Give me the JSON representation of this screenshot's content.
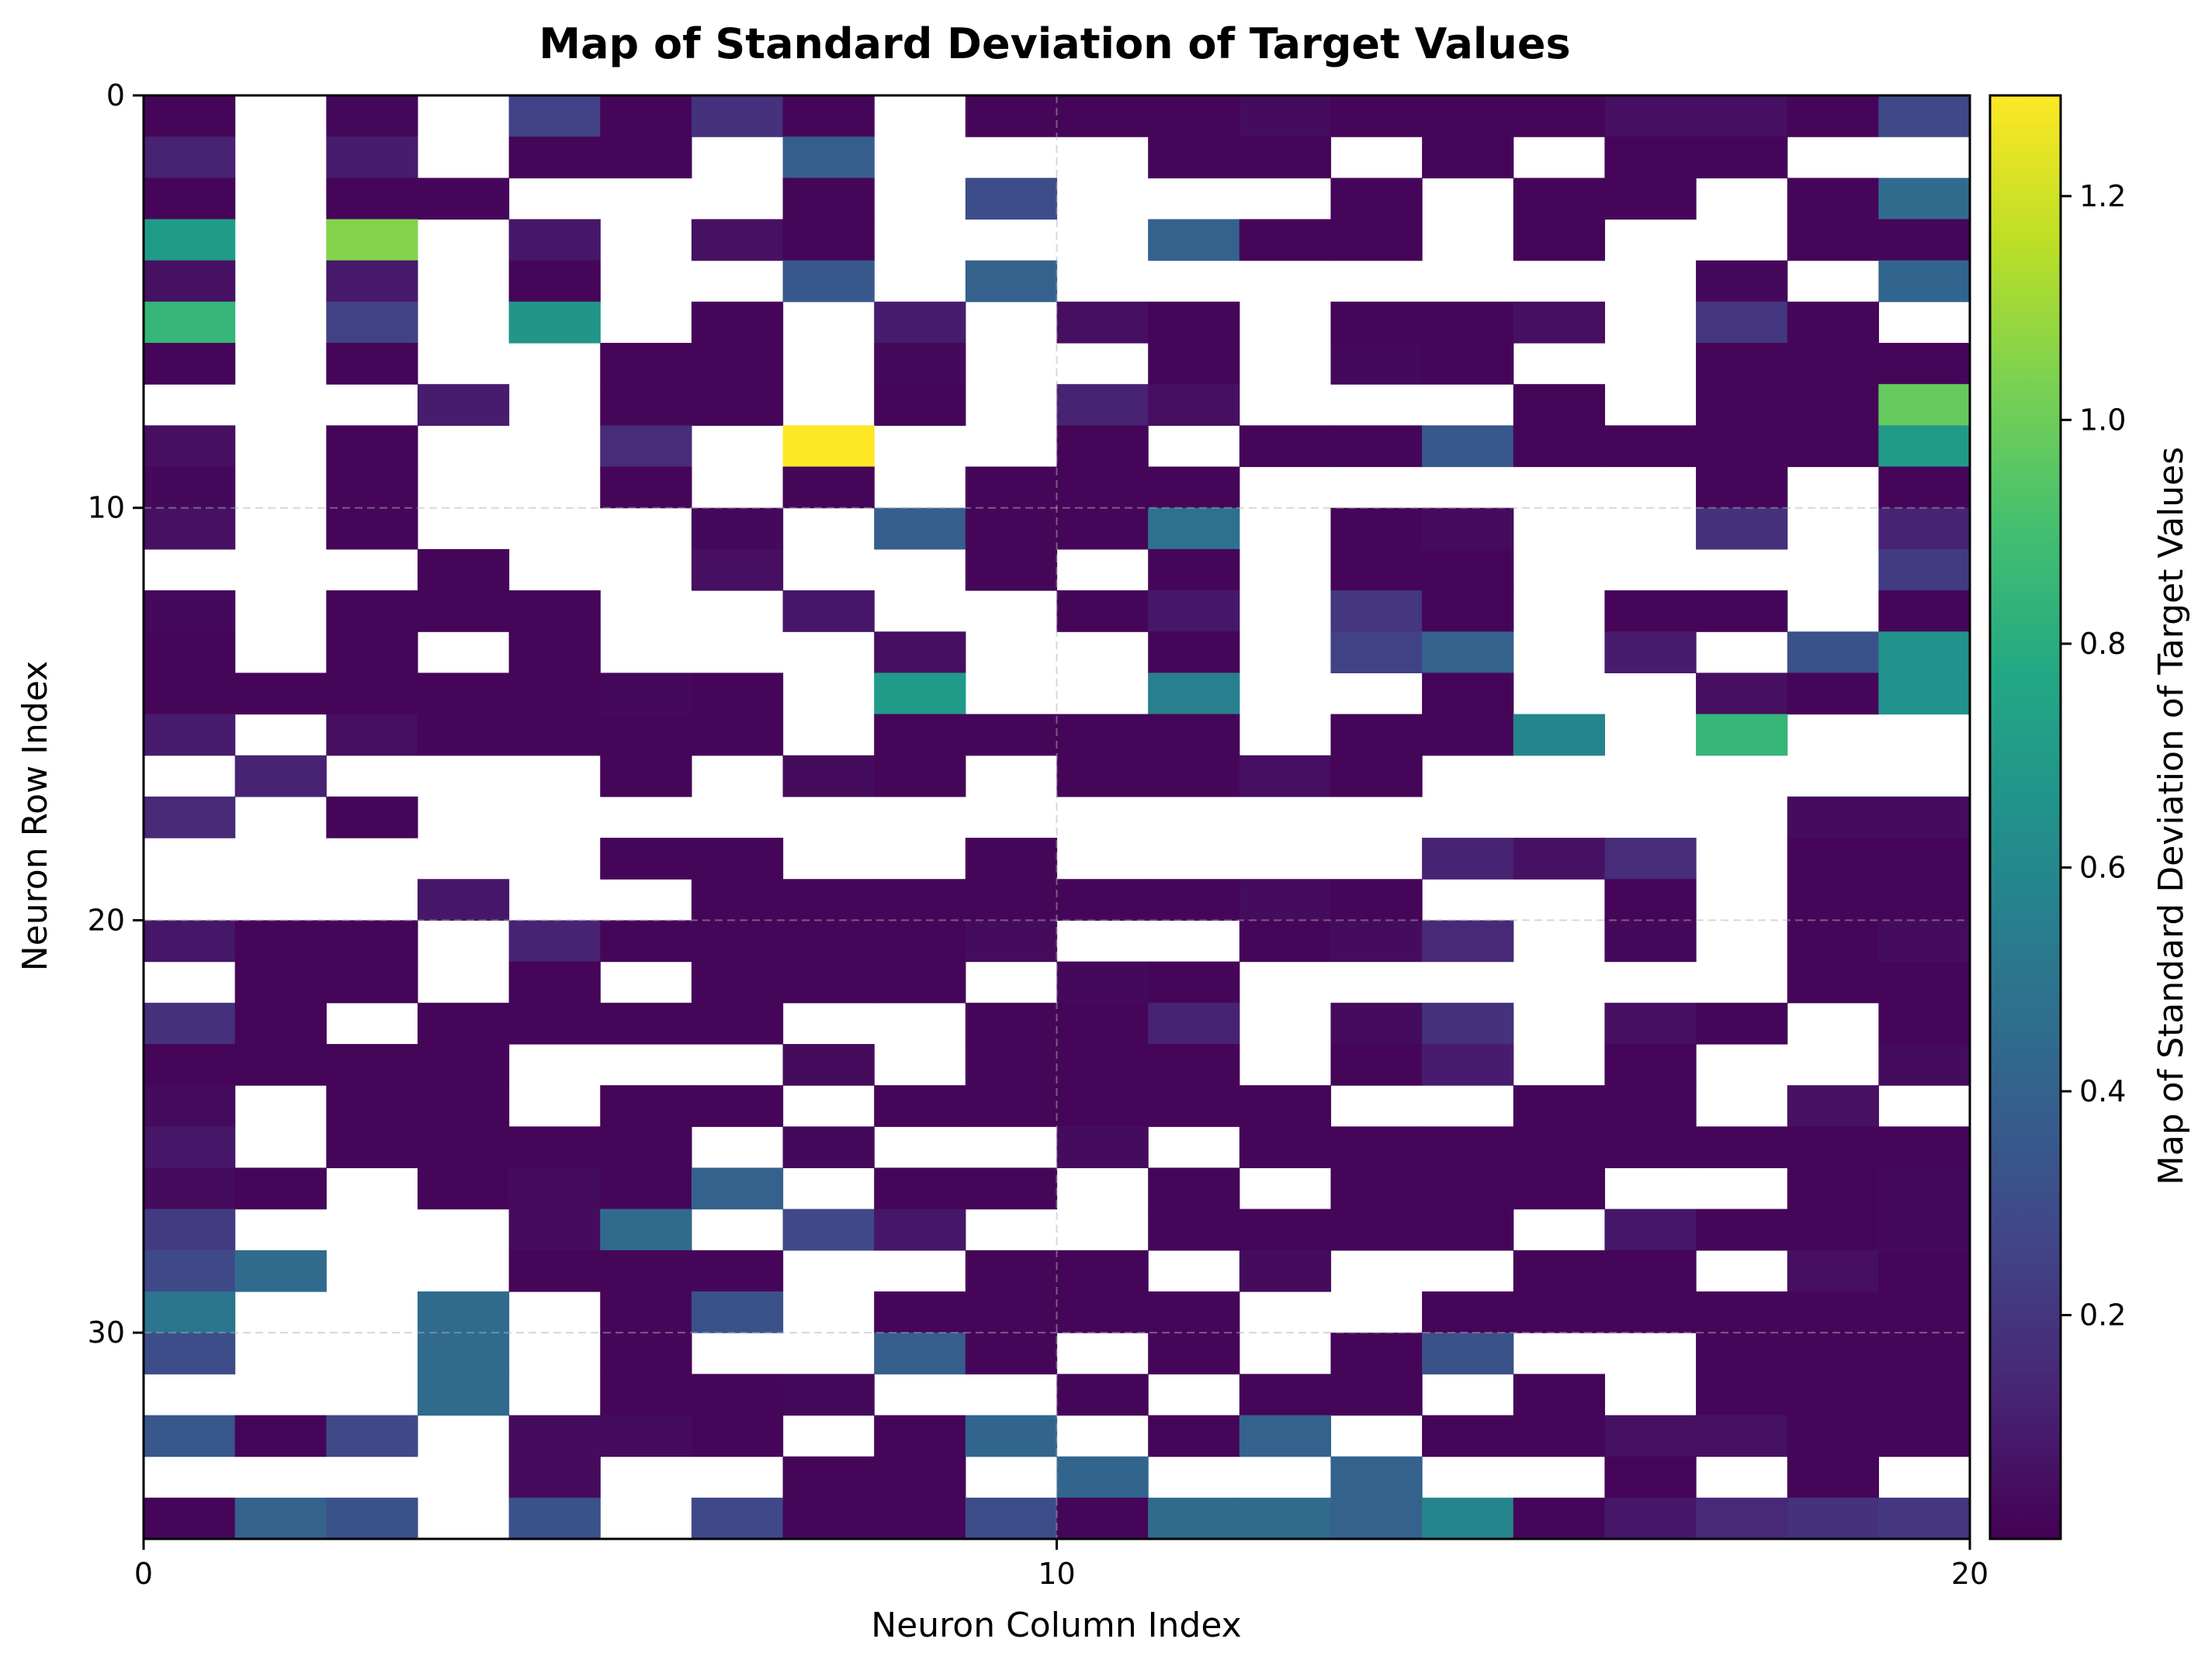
{
  "chart_data": {
    "type": "heatmap",
    "title": "Map of Standard Deviation of Target Values",
    "xlabel": "Neuron Column Index",
    "ylabel": "Neuron Row Index",
    "colorbar_label": "Map of Standard Deviation of Target Values",
    "colormap": "viridis",
    "color_range": [
      0.0,
      1.29
    ],
    "x_range": [
      0,
      20
    ],
    "y_range": [
      0,
      35
    ],
    "y_inverted": true,
    "grid": true,
    "x_ticks": [
      0,
      10,
      20
    ],
    "x_tick_labels": [
      "0",
      "10",
      "20"
    ],
    "y_ticks": [
      0,
      10,
      20,
      30
    ],
    "y_tick_labels": [
      "0",
      "10",
      "20",
      "30"
    ],
    "colorbar_ticks": [
      0.2,
      0.4,
      0.6,
      0.8,
      1.0,
      1.2
    ],
    "colorbar_tick_labels": [
      "0.2",
      "0.4",
      "0.6",
      "0.8",
      "1.0",
      "1.2"
    ],
    "missing_color": "#ffffff",
    "values": [
      [
        0.02,
        null,
        0.03,
        null,
        0.25,
        0.02,
        0.18,
        0.02,
        null,
        0.02,
        0.02,
        0.02,
        0.04,
        0.02,
        0.02,
        0.02,
        0.05,
        0.05,
        0.02,
        0.28
      ],
      [
        0.12,
        null,
        0.1,
        null,
        0.02,
        0.02,
        null,
        0.38,
        null,
        null,
        null,
        0.02,
        0.02,
        null,
        0.02,
        null,
        0.02,
        0.02,
        null,
        null
      ],
      [
        0.02,
        null,
        0.02,
        0.02,
        null,
        null,
        null,
        0.02,
        null,
        0.3,
        null,
        null,
        null,
        0.02,
        null,
        0.02,
        0.02,
        null,
        0.02,
        0.45
      ],
      [
        0.7,
        null,
        1.05,
        null,
        0.08,
        null,
        0.06,
        0.02,
        null,
        null,
        null,
        0.4,
        0.02,
        0.02,
        null,
        0.02,
        null,
        null,
        0.02,
        0.02
      ],
      [
        0.06,
        null,
        0.09,
        null,
        0.02,
        null,
        null,
        0.36,
        null,
        0.4,
        null,
        null,
        null,
        null,
        null,
        null,
        null,
        0.03,
        null,
        0.42
      ],
      [
        0.85,
        null,
        0.25,
        null,
        0.67,
        null,
        0.02,
        null,
        0.1,
        null,
        0.05,
        0.02,
        null,
        0.02,
        0.02,
        0.05,
        null,
        0.2,
        0.02,
        null
      ],
      [
        0.02,
        null,
        0.02,
        null,
        null,
        0.02,
        0.02,
        null,
        0.03,
        null,
        null,
        0.02,
        null,
        0.03,
        0.02,
        null,
        null,
        0.02,
        0.02,
        0.02
      ],
      [
        null,
        null,
        null,
        0.1,
        null,
        0.02,
        0.02,
        null,
        0.02,
        null,
        0.12,
        0.05,
        null,
        null,
        null,
        0.02,
        null,
        0.02,
        0.02,
        0.98
      ],
      [
        0.05,
        null,
        0.02,
        null,
        null,
        0.16,
        null,
        1.29,
        null,
        null,
        0.02,
        null,
        0.02,
        0.02,
        0.35,
        0.02,
        0.02,
        0.02,
        0.02,
        0.7
      ],
      [
        0.03,
        null,
        0.02,
        null,
        null,
        0.02,
        null,
        0.02,
        null,
        0.02,
        0.02,
        0.02,
        null,
        null,
        null,
        null,
        null,
        0.02,
        null,
        0.02
      ],
      [
        0.06,
        null,
        0.02,
        null,
        null,
        null,
        0.03,
        null,
        0.38,
        0.02,
        0.02,
        0.48,
        null,
        0.02,
        0.04,
        null,
        null,
        0.18,
        null,
        0.12
      ],
      [
        null,
        null,
        null,
        0.02,
        null,
        null,
        0.05,
        null,
        null,
        0.02,
        null,
        0.02,
        null,
        0.02,
        0.02,
        null,
        null,
        null,
        null,
        0.22
      ],
      [
        0.03,
        null,
        0.02,
        0.02,
        0.02,
        null,
        null,
        0.08,
        null,
        null,
        0.02,
        0.08,
        null,
        0.2,
        0.02,
        null,
        0.02,
        0.02,
        null,
        0.02
      ],
      [
        0.02,
        null,
        0.02,
        null,
        0.02,
        null,
        null,
        null,
        0.05,
        null,
        null,
        0.02,
        null,
        0.25,
        0.4,
        null,
        0.1,
        null,
        0.32,
        0.65
      ],
      [
        0.02,
        0.02,
        0.02,
        0.02,
        0.02,
        0.03,
        0.02,
        null,
        0.7,
        null,
        null,
        0.55,
        null,
        null,
        0.02,
        null,
        null,
        0.05,
        0.02,
        0.65
      ],
      [
        0.1,
        null,
        0.05,
        0.02,
        0.02,
        0.02,
        0.02,
        null,
        0.02,
        0.02,
        0.02,
        0.02,
        null,
        0.02,
        0.02,
        0.58,
        null,
        0.85,
        null,
        null
      ],
      [
        null,
        0.12,
        null,
        null,
        null,
        0.02,
        null,
        0.04,
        0.02,
        null,
        0.02,
        0.02,
        0.05,
        0.02,
        null,
        null,
        null,
        null,
        null,
        null
      ],
      [
        0.15,
        null,
        0.02,
        null,
        null,
        null,
        null,
        null,
        null,
        null,
        null,
        null,
        null,
        null,
        null,
        null,
        null,
        null,
        0.04,
        0.04
      ],
      [
        null,
        null,
        null,
        null,
        null,
        0.02,
        0.02,
        null,
        null,
        0.02,
        null,
        null,
        null,
        null,
        0.12,
        0.06,
        0.16,
        null,
        0.02,
        0.02
      ],
      [
        null,
        null,
        null,
        0.08,
        null,
        null,
        0.02,
        0.02,
        0.02,
        0.02,
        0.02,
        0.02,
        0.04,
        0.02,
        null,
        null,
        0.02,
        null,
        0.02,
        0.02
      ],
      [
        0.08,
        0.02,
        0.02,
        null,
        0.12,
        0.02,
        0.02,
        0.02,
        0.02,
        0.04,
        null,
        null,
        0.02,
        0.04,
        0.15,
        null,
        0.03,
        null,
        0.02,
        0.04
      ],
      [
        null,
        0.02,
        0.02,
        null,
        0.02,
        null,
        0.02,
        0.02,
        0.02,
        null,
        0.03,
        0.02,
        null,
        null,
        null,
        null,
        null,
        null,
        0.02,
        0.02
      ],
      [
        0.18,
        0.02,
        null,
        0.02,
        0.02,
        0.02,
        0.02,
        null,
        null,
        0.02,
        0.02,
        0.12,
        null,
        0.04,
        0.18,
        null,
        0.05,
        0.02,
        null,
        0.02
      ],
      [
        0.02,
        0.02,
        0.02,
        0.02,
        null,
        null,
        null,
        0.04,
        null,
        0.02,
        0.02,
        0.02,
        null,
        0.02,
        0.1,
        null,
        0.02,
        null,
        null,
        0.04
      ],
      [
        0.04,
        null,
        0.02,
        0.02,
        null,
        0.02,
        0.02,
        null,
        0.02,
        0.02,
        0.02,
        0.02,
        0.02,
        null,
        null,
        0.02,
        0.02,
        null,
        0.06,
        null
      ],
      [
        0.08,
        null,
        0.02,
        0.02,
        0.02,
        0.02,
        null,
        0.03,
        null,
        null,
        0.04,
        null,
        0.02,
        0.02,
        0.02,
        0.02,
        0.02,
        0.02,
        0.02,
        0.02
      ],
      [
        0.04,
        0.02,
        null,
        0.02,
        0.04,
        0.02,
        0.4,
        null,
        0.02,
        0.02,
        null,
        0.02,
        null,
        0.02,
        0.02,
        0.02,
        null,
        null,
        0.02,
        0.03
      ],
      [
        0.22,
        null,
        null,
        null,
        0.04,
        0.45,
        null,
        0.28,
        0.08,
        null,
        null,
        0.02,
        0.02,
        0.02,
        0.02,
        null,
        0.08,
        0.02,
        0.02,
        0.03
      ],
      [
        0.28,
        0.45,
        null,
        null,
        0.02,
        0.02,
        0.02,
        null,
        null,
        0.02,
        0.02,
        null,
        0.04,
        null,
        null,
        0.02,
        0.02,
        null,
        0.05,
        0.02
      ],
      [
        0.5,
        null,
        null,
        0.45,
        null,
        0.02,
        0.32,
        null,
        0.02,
        0.02,
        0.02,
        0.02,
        null,
        null,
        0.02,
        0.02,
        0.02,
        0.02,
        0.02,
        0.02
      ],
      [
        0.3,
        null,
        null,
        0.45,
        null,
        0.02,
        null,
        null,
        0.38,
        0.02,
        null,
        0.02,
        null,
        0.02,
        0.32,
        null,
        null,
        0.02,
        0.02,
        0.02
      ],
      [
        null,
        null,
        null,
        0.45,
        null,
        0.02,
        0.02,
        0.03,
        null,
        null,
        0.02,
        null,
        0.02,
        0.02,
        null,
        0.02,
        null,
        0.02,
        0.02,
        0.02
      ],
      [
        0.35,
        0.02,
        0.28,
        null,
        0.04,
        0.04,
        0.02,
        null,
        0.02,
        0.42,
        null,
        0.02,
        0.4,
        null,
        0.02,
        0.02,
        0.06,
        0.06,
        0.02,
        0.02
      ],
      [
        null,
        null,
        null,
        null,
        0.04,
        null,
        null,
        0.02,
        0.02,
        null,
        0.42,
        null,
        null,
        0.4,
        null,
        null,
        0.02,
        null,
        0.02,
        null
      ],
      [
        0.02,
        0.4,
        0.32,
        null,
        0.32,
        null,
        0.28,
        0.02,
        0.02,
        0.3,
        0.02,
        0.45,
        0.45,
        0.4,
        0.58,
        0.02,
        0.08,
        0.15,
        0.18,
        0.2
      ]
    ]
  }
}
